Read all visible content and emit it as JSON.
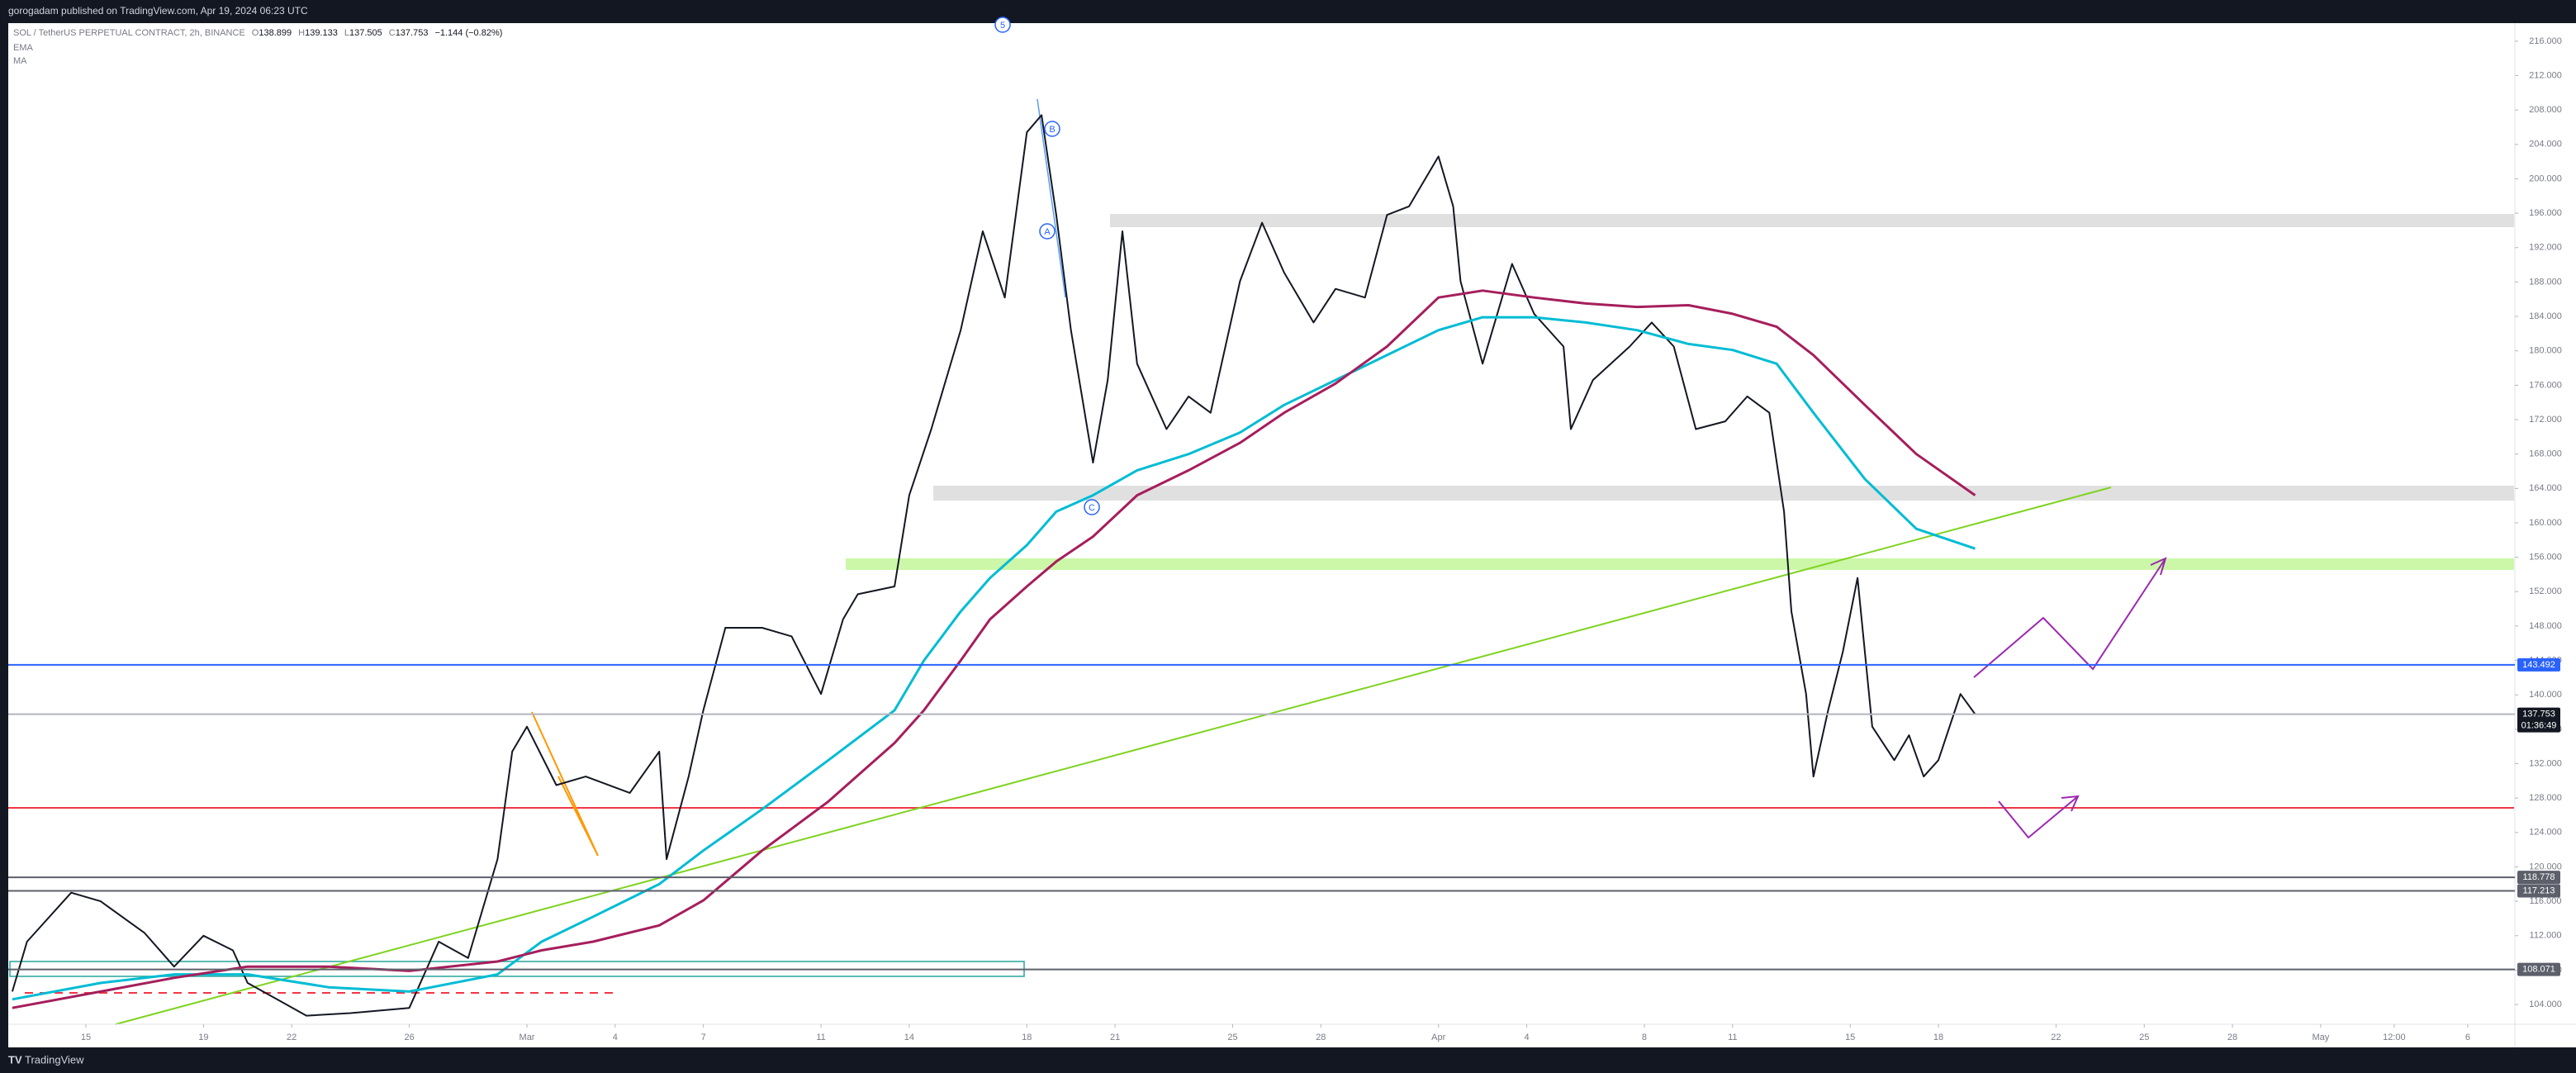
{
  "header": {
    "publisher": "gorogadam published on TradingView.com, Apr 19, 2024 06:23 UTC"
  },
  "footer": {
    "brand": "TradingView"
  },
  "chart_data": {
    "type": "line",
    "title": "SOL / TetherUS PERPETUAL CONTRACT, 2h, BINANCE",
    "ohlc": [
      {
        "label": "O",
        "value": 138.899
      },
      {
        "label": "H",
        "value": 139.133
      },
      {
        "label": "L",
        "value": 137.505
      },
      {
        "label": "C",
        "value": 137.753
      }
    ],
    "change": "−1.144 (−0.82%)",
    "wave_labels": [
      "5",
      "B",
      "A",
      "C"
    ],
    "xlim": [
      "2024-02-12T08:40",
      "2024-05-07T14:30"
    ],
    "xticks": [
      {
        "value": "2024-02-15",
        "label": "15"
      },
      {
        "value": "2024-02-19",
        "label": "19"
      },
      {
        "value": "2024-02-22",
        "label": "22"
      },
      {
        "value": "2024-02-26",
        "label": "26"
      },
      {
        "value": "2024-03-01",
        "label": "Mar"
      },
      {
        "value": "2024-03-04",
        "label": "4"
      },
      {
        "value": "2024-03-07",
        "label": "7"
      },
      {
        "value": "2024-03-11",
        "label": "11"
      },
      {
        "value": "2024-03-14",
        "label": "14"
      },
      {
        "value": "2024-03-18",
        "label": "18"
      },
      {
        "value": "2024-03-21",
        "label": "21"
      },
      {
        "value": "2024-03-25",
        "label": "25"
      },
      {
        "value": "2024-03-28",
        "label": "28"
      },
      {
        "value": "2024-04-01",
        "label": "Apr"
      },
      {
        "value": "2024-04-04",
        "label": "4"
      },
      {
        "value": "2024-04-08",
        "label": "8"
      },
      {
        "value": "2024-04-11",
        "label": "11"
      },
      {
        "value": "2024-04-15",
        "label": "15"
      },
      {
        "value": "2024-04-18",
        "label": "18"
      },
      {
        "value": "2024-04-22",
        "label": "22"
      },
      {
        "value": "2024-04-25",
        "label": "25"
      },
      {
        "value": "2024-04-28",
        "label": "28"
      },
      {
        "value": "2024-05-01",
        "label": "May"
      },
      {
        "value": "2024-05-03T12:00",
        "label": "12:00"
      },
      {
        "value": "2024-05-06",
        "label": "6"
      }
    ],
    "ylim": [
      101.7,
      218.1
    ],
    "yticks": [
      {
        "value": 104,
        "label": "104.000"
      },
      {
        "value": 108,
        "label": "108.000"
      },
      {
        "value": 112,
        "label": "112.000"
      },
      {
        "value": 116,
        "label": "116.000"
      },
      {
        "value": 120,
        "label": "120.000"
      },
      {
        "value": 124,
        "label": "124.000"
      },
      {
        "value": 128,
        "label": "128.000"
      },
      {
        "value": 132,
        "label": "132.000"
      },
      {
        "value": 136,
        "label": "136.000"
      },
      {
        "value": 140,
        "label": "140.000"
      },
      {
        "value": 144,
        "label": "144.000"
      },
      {
        "value": 148,
        "label": "148.000"
      },
      {
        "value": 152,
        "label": "152.000"
      },
      {
        "value": 156,
        "label": "156.000"
      },
      {
        "value": 160,
        "label": "160.000"
      },
      {
        "value": 164,
        "label": "164.000"
      },
      {
        "value": 168,
        "label": "168.000"
      },
      {
        "value": 172,
        "label": "172.000"
      },
      {
        "value": 176,
        "label": "176.000"
      },
      {
        "value": 180,
        "label": "180.000"
      },
      {
        "value": 184,
        "label": "184.000"
      },
      {
        "value": 188,
        "label": "188.000"
      },
      {
        "value": 192,
        "label": "192.000"
      },
      {
        "value": 196,
        "label": "196.000"
      },
      {
        "value": 200,
        "label": "200.000"
      },
      {
        "value": 204,
        "label": "204.000"
      },
      {
        "value": 208,
        "label": "208.000"
      },
      {
        "value": 212,
        "label": "212.000"
      },
      {
        "value": 216,
        "label": "216.000"
      }
    ],
    "series": [
      {
        "color": "#131722",
        "x": [
          "2024-02-12T12:00",
          "2024-02-13T00:00",
          "2024-02-14T12:00",
          "2024-02-15T12:00",
          "2024-02-17T00:00",
          "2024-02-18T00:00",
          "2024-02-19T00:00",
          "2024-02-20T00:00",
          "2024-02-20T12:00",
          "2024-02-21T12:00",
          "2024-02-22T12:00",
          "2024-02-24T00:00",
          "2024-02-26T00:00",
          "2024-02-27T00:00",
          "2024-02-28T00:00",
          "2024-02-29T00:00",
          "2024-02-29T12:00",
          "2024-03-01T00:00",
          "2024-03-02T00:00",
          "2024-03-03T00:00",
          "2024-03-04T12:00",
          "2024-03-05T12:00",
          "2024-03-05T18:00",
          "2024-03-06T12:00",
          "2024-03-07T00:00",
          "2024-03-07T18:00",
          "2024-03-09T00:00",
          "2024-03-10T00:00",
          "2024-03-11T00:00",
          "2024-03-11T18:00",
          "2024-03-12T06:00",
          "2024-03-13T12:00",
          "2024-03-14T00:00",
          "2024-03-14T18:00",
          "2024-03-15T18:00",
          "2024-03-16T12:00",
          "2024-03-17T06:00",
          "2024-03-18T00:00",
          "2024-03-18T12:00",
          "2024-03-19T00:00",
          "2024-03-19T12:00",
          "2024-03-20T06:00",
          "2024-03-20T18:00",
          "2024-03-21T06:00",
          "2024-03-21T18:00",
          "2024-03-22T18:00",
          "2024-03-23T12:00",
          "2024-03-24T06:00",
          "2024-03-25T06:00",
          "2024-03-26T00:00",
          "2024-03-26T18:00",
          "2024-03-27T18:00",
          "2024-03-28T12:00",
          "2024-03-29T12:00",
          "2024-03-30T06:00",
          "2024-03-31T00:00",
          "2024-04-01T00:00",
          "2024-04-01T12:00",
          "2024-04-01T18:00",
          "2024-04-02T12:00",
          "2024-04-03T12:00",
          "2024-04-04T06:00",
          "2024-04-05T06:00",
          "2024-04-05T12:00",
          "2024-04-06T06:00",
          "2024-04-07T12:00",
          "2024-04-08T06:00",
          "2024-04-09T00:00",
          "2024-04-09T18:00",
          "2024-04-10T18:00",
          "2024-04-11T12:00",
          "2024-04-12T06:00",
          "2024-04-12T18:00",
          "2024-04-13T00:00",
          "2024-04-13T12:00",
          "2024-04-13T18:00",
          "2024-04-14T06:00",
          "2024-04-14T18:00",
          "2024-04-15T06:00",
          "2024-04-15T18:00",
          "2024-04-16T12:00",
          "2024-04-17T00:00",
          "2024-04-17T12:00",
          "2024-04-18T00:00",
          "2024-04-18T18:00",
          "2024-04-19T06:00"
        ],
        "values": [
          105.5,
          111.3,
          117,
          116,
          112.3,
          108.4,
          112,
          110.3,
          106.5,
          104.6,
          102.7,
          103,
          103.6,
          111.3,
          109.4,
          120.9,
          133.4,
          136.3,
          129.5,
          130.5,
          128.6,
          133.4,
          120.9,
          130.5,
          138.2,
          147.8,
          147.8,
          146.8,
          140.1,
          148.8,
          151.7,
          152.6,
          163.2,
          170.9,
          182.4,
          193.9,
          186.2,
          205.4,
          207.4,
          195.8,
          182.4,
          167,
          176.6,
          193.9,
          178.5,
          170.9,
          174.7,
          172.8,
          188.1,
          194.9,
          189.1,
          183.3,
          187.2,
          186.2,
          195.8,
          196.8,
          202.6,
          196.8,
          188.1,
          178.5,
          190.1,
          184.3,
          180.5,
          170.9,
          176.6,
          180.5,
          183.3,
          180.5,
          170.9,
          171.8,
          174.7,
          172.8,
          161.3,
          149.7,
          140.1,
          130.5,
          138.2,
          145,
          153.6,
          136.3,
          132.4,
          135.3,
          130.5,
          132.4,
          140.1,
          137.753
        ]
      },
      {
        "name": "EMA",
        "color": "#00bcd4",
        "x": [
          "2024-02-12T12:00",
          "2024-02-15T12:00",
          "2024-02-18T00:00",
          "2024-02-20T12:00",
          "2024-02-23T06:00",
          "2024-02-26T00:00",
          "2024-02-29T00:00",
          "2024-03-01T12:00",
          "2024-03-03T06:00",
          "2024-03-05T12:00",
          "2024-03-07T00:00",
          "2024-03-09T00:00",
          "2024-03-11T06:00",
          "2024-03-13T12:00",
          "2024-03-14T12:00",
          "2024-03-15T18:00",
          "2024-03-16T18:00",
          "2024-03-18T00:00",
          "2024-03-19T00:00",
          "2024-03-20T06:00",
          "2024-03-21T18:00",
          "2024-03-23T12:00",
          "2024-03-25T06:00",
          "2024-03-26T18:00",
          "2024-03-28T12:00",
          "2024-03-30T06:00",
          "2024-04-01T00:00",
          "2024-04-02T12:00",
          "2024-04-04T06:00",
          "2024-04-06T00:00",
          "2024-04-07T18:00",
          "2024-04-09T12:00",
          "2024-04-11T00:00",
          "2024-04-12T12:00",
          "2024-04-13T18:00",
          "2024-04-15T12:00",
          "2024-04-17T06:00",
          "2024-04-19T06:00"
        ],
        "values": [
          104.6,
          106.5,
          107.5,
          107.5,
          106,
          105.5,
          107.5,
          111.3,
          114.2,
          118,
          121.9,
          126.7,
          132.4,
          138.2,
          144,
          149.7,
          153.6,
          157.4,
          161.3,
          163.2,
          166.1,
          168,
          170.5,
          173.7,
          176.6,
          179.5,
          182.4,
          183.9,
          183.9,
          183.3,
          182.4,
          180.8,
          180.1,
          178.5,
          172.8,
          165.1,
          159.3,
          157
        ]
      },
      {
        "name": "MA",
        "color": "#a61e5c",
        "x": [
          "2024-02-12T12:00",
          "2024-02-15T12:00",
          "2024-02-18T00:00",
          "2024-02-20T12:00",
          "2024-02-23T06:00",
          "2024-02-26T00:00",
          "2024-02-29T00:00",
          "2024-03-01T12:00",
          "2024-03-03T06:00",
          "2024-03-05T12:00",
          "2024-03-07T00:00",
          "2024-03-09T00:00",
          "2024-03-11T06:00",
          "2024-03-13T12:00",
          "2024-03-14T12:00",
          "2024-03-15T18:00",
          "2024-03-16T18:00",
          "2024-03-18T00:00",
          "2024-03-19T00:00",
          "2024-03-20T06:00",
          "2024-03-21T18:00",
          "2024-03-23T12:00",
          "2024-03-25T06:00",
          "2024-03-26T18:00",
          "2024-03-28T12:00",
          "2024-03-30T06:00",
          "2024-04-01T00:00",
          "2024-04-02T12:00",
          "2024-04-04T06:00",
          "2024-04-06T00:00",
          "2024-04-07T18:00",
          "2024-04-09T12:00",
          "2024-04-11T00:00",
          "2024-04-12T12:00",
          "2024-04-13T18:00",
          "2024-04-15T12:00",
          "2024-04-17T06:00",
          "2024-04-19T06:00"
        ],
        "values": [
          103.6,
          105.5,
          107.1,
          108.4,
          108.4,
          107.9,
          109,
          110.3,
          111.3,
          113.2,
          116.1,
          121.9,
          127.6,
          134.4,
          138.2,
          144,
          148.8,
          152.6,
          155.5,
          158.4,
          163.2,
          166.1,
          169.3,
          172.8,
          176.2,
          180.5,
          186.2,
          187,
          186.2,
          185.5,
          185.1,
          185.3,
          184.3,
          182.8,
          179.5,
          173.7,
          168,
          163.2
        ]
      }
    ],
    "price_lines": [
      {
        "value": 143.492,
        "color": "#2962ff"
      },
      {
        "value": 137.753,
        "color": "#b2b5be",
        "label_color": "#131722",
        "countdown": "01:36:49"
      },
      {
        "value": 118.778,
        "color": "#5d606b"
      },
      {
        "value": 117.213,
        "color": "#5d606b"
      },
      {
        "value": 108.071,
        "color": "#5d606b"
      }
    ]
  }
}
